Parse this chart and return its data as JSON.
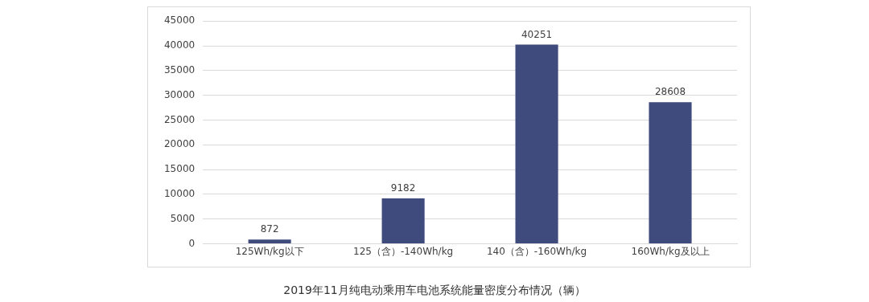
{
  "chart_data": {
    "type": "bar",
    "title": "2019年11月纯电动乘用车电池系统能量密度分布情况（辆）",
    "categories": [
      "125Wh/kg以下",
      "125（含）-140Wh/kg",
      "140（含）-160Wh/kg",
      "160Wh/kg及以上"
    ],
    "values": [
      872,
      9182,
      40251,
      28608
    ],
    "color": "#3f4a7d",
    "ylim": [
      0,
      45000
    ],
    "yticks": [
      0,
      5000,
      10000,
      15000,
      20000,
      25000,
      30000,
      35000,
      40000,
      45000
    ],
    "grid": "y",
    "data_labels": true,
    "legend": false
  }
}
